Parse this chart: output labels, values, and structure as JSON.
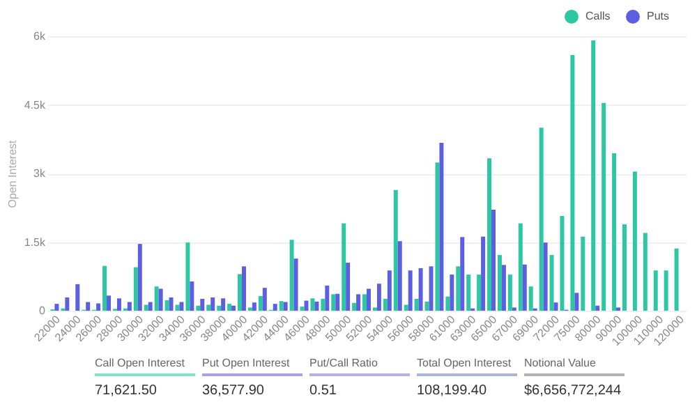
{
  "chart_data": {
    "type": "bar",
    "ylabel": "Open Interest",
    "categories": [
      "22000",
      null,
      "24000",
      null,
      "26000",
      null,
      "28000",
      null,
      "30000",
      null,
      "32000",
      null,
      "34000",
      null,
      "36000",
      null,
      "38000",
      null,
      "40000",
      null,
      "42000",
      null,
      "44000",
      null,
      "46000",
      null,
      "48000",
      null,
      "50000",
      null,
      "52000",
      null,
      "54000",
      null,
      "56000",
      null,
      "58000",
      null,
      "61000",
      null,
      "63000",
      null,
      "65000",
      null,
      "67000",
      null,
      "69000",
      null,
      "72000",
      null,
      "75000",
      null,
      "80000",
      null,
      "90000",
      null,
      "100000",
      null,
      "110000",
      null,
      "120000"
    ],
    "series": [
      {
        "name": "Calls",
        "color": "#2ec7a3",
        "values": [
          30,
          50,
          0,
          20,
          20,
          980,
          40,
          50,
          950,
          130,
          530,
          230,
          130,
          1490,
          110,
          130,
          110,
          150,
          800,
          70,
          320,
          20,
          210,
          1550,
          90,
          270,
          260,
          360,
          1910,
          170,
          360,
          70,
          260,
          2640,
          130,
          260,
          200,
          3240,
          310,
          970,
          790,
          790,
          3330,
          1220,
          790,
          1910,
          530,
          4000,
          1220,
          2070,
          5590,
          1620,
          5910,
          4540,
          3440,
          1890,
          3040,
          1700,
          880,
          880,
          1360
        ]
      },
      {
        "name": "Puts",
        "color": "#5b5fe0",
        "values": [
          150,
          290,
          580,
          190,
          160,
          330,
          270,
          190,
          1460,
          190,
          480,
          290,
          190,
          640,
          260,
          290,
          270,
          110,
          970,
          180,
          500,
          150,
          190,
          1140,
          220,
          200,
          550,
          370,
          1050,
          360,
          480,
          590,
          880,
          1520,
          880,
          930,
          970,
          3670,
          790,
          1610,
          50,
          1620,
          2210,
          1000,
          70,
          1010,
          50,
          1490,
          180,
          20,
          390,
          0,
          110,
          0,
          70,
          0,
          0,
          0,
          0,
          0,
          0
        ]
      }
    ],
    "ylim": [
      0,
      6000
    ],
    "yticks": [
      0,
      {
        "value": 1500,
        "label": "1.5k"
      },
      {
        "value": 3000,
        "label": "3k"
      },
      {
        "value": 4500,
        "label": "4.5k"
      },
      {
        "value": 6000,
        "label": "6k"
      }
    ],
    "grid": "y",
    "legend": "top right",
    "annotations": [
      "Call Open Interest",
      "71,621.50",
      "Put Open Interest",
      "36,577.90",
      "Put/Call Ratio",
      "0.51",
      "Total Open Interest",
      "108,199.40",
      "Notional Value",
      "$6,656,772,244"
    ]
  }
}
